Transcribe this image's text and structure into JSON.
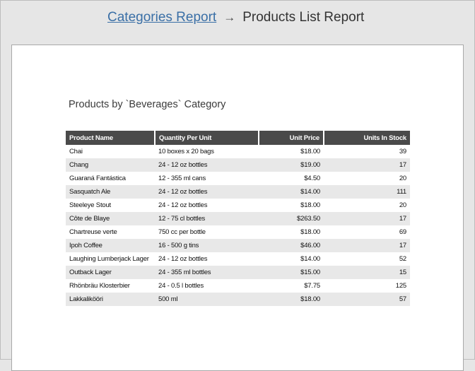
{
  "breadcrumb": {
    "parent_label": "Categories Report",
    "separator": "→",
    "current_label": "Products List Report"
  },
  "report": {
    "title": "Products by `Beverages` Category",
    "columns": [
      "Product Name",
      "Quantity Per Unit",
      "Unit Price",
      "Units In Stock"
    ],
    "rows": [
      [
        "Chai",
        "10 boxes x 20 bags",
        "$18.00",
        "39"
      ],
      [
        "Chang",
        "24 - 12 oz bottles",
        "$19.00",
        "17"
      ],
      [
        "Guaraná Fantástica",
        "12 - 355 ml cans",
        "$4.50",
        "20"
      ],
      [
        "Sasquatch Ale",
        "24 - 12 oz bottles",
        "$14.00",
        "111"
      ],
      [
        "Steeleye Stout",
        "24 - 12 oz bottles",
        "$18.00",
        "20"
      ],
      [
        "Côte de Blaye",
        "12 - 75 cl bottles",
        "$263.50",
        "17"
      ],
      [
        "Chartreuse verte",
        "750 cc per bottle",
        "$18.00",
        "69"
      ],
      [
        "Ipoh Coffee",
        "16 - 500 g tins",
        "$46.00",
        "17"
      ],
      [
        "Laughing Lumberjack Lager",
        "24 - 12 oz bottles",
        "$14.00",
        "52"
      ],
      [
        "Outback Lager",
        "24 - 355 ml bottles",
        "$15.00",
        "15"
      ],
      [
        "Rhönbräu Klosterbier",
        "24 - 0.5 l bottles",
        "$7.75",
        "125"
      ],
      [
        "Lakkalikööri",
        "500 ml",
        "$18.00",
        "57"
      ]
    ]
  },
  "colors": {
    "link": "#3a6fa6",
    "header_bg": "#4a4a4a",
    "stripe": "#e8e8e8",
    "background": "#e6e6e6"
  }
}
